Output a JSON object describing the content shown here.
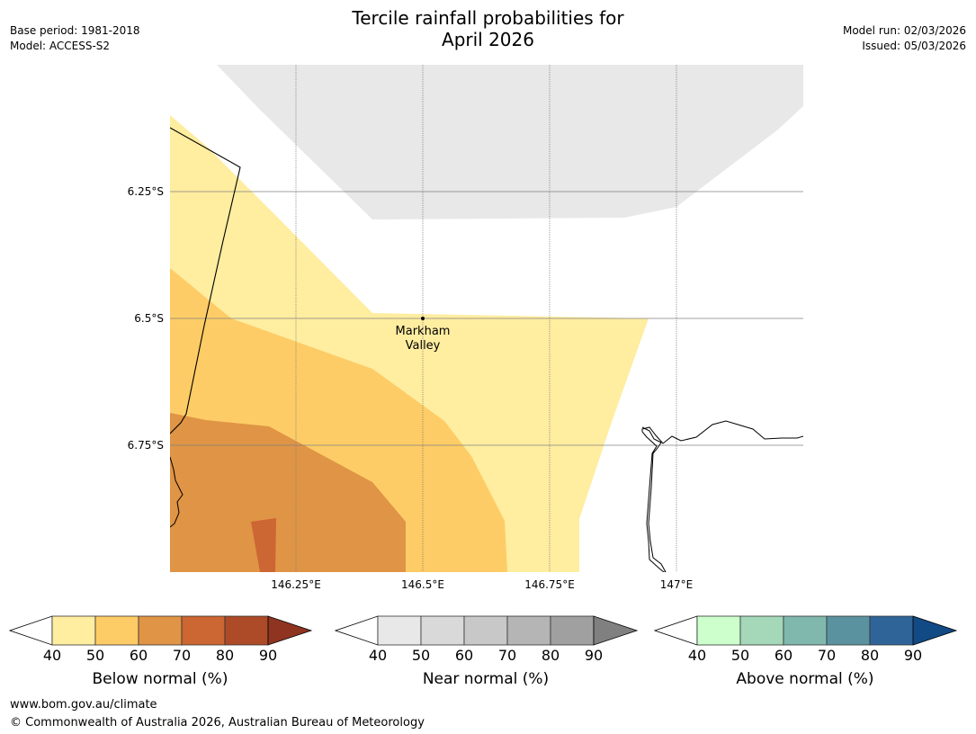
{
  "header": {
    "title_line1": "Tercile rainfall probabilities for",
    "title_line2": "April 2026",
    "base_period": "Base period: 1981-2018",
    "model": "Model: ACCESS-S2",
    "model_run": "Model run: 02/03/2026",
    "issued": "Issued: 05/03/2026"
  },
  "map": {
    "lat_labels": [
      "6.25°S",
      "6.5°S",
      "6.75°S"
    ],
    "lon_labels": [
      "146.25°E",
      "146.5°E",
      "146.75°E",
      "147°E"
    ],
    "place_name_line1": "Markham",
    "place_name_line2": "Valley",
    "colors": {
      "near_40_50": "#e8e8e8",
      "below_40_50": "#ffeda0",
      "below_50_60": "#fecc66",
      "below_60_70": "#e09445",
      "below_70_80": "#cc6633",
      "grid_line": "#808080",
      "coast": "#000000"
    }
  },
  "colorbars": [
    {
      "label": "Below normal (%)",
      "ticks": [
        "40",
        "50",
        "60",
        "70",
        "80",
        "90"
      ],
      "colors": [
        "#ffffff",
        "#ffeda0",
        "#fecc66",
        "#e09445",
        "#cc6633",
        "#ad4a27",
        "#8f3420"
      ]
    },
    {
      "label": "Near normal (%)",
      "ticks": [
        "40",
        "50",
        "60",
        "70",
        "80",
        "90"
      ],
      "colors": [
        "#ffffff",
        "#e8e8e8",
        "#d9d9d9",
        "#c8c8c8",
        "#b5b5b5",
        "#a0a0a0",
        "#808080"
      ]
    },
    {
      "label": "Above normal (%)",
      "ticks": [
        "40",
        "50",
        "60",
        "70",
        "80",
        "90"
      ],
      "colors": [
        "#ffffff",
        "#ccffcc",
        "#a4d8b8",
        "#80b8ad",
        "#5a92a0",
        "#2f6499",
        "#124a85"
      ]
    }
  ],
  "footer": {
    "url": "www.bom.gov.au/climate",
    "copyright": "© Commonwealth of Australia 2026, Australian Bureau of Meteorology"
  }
}
